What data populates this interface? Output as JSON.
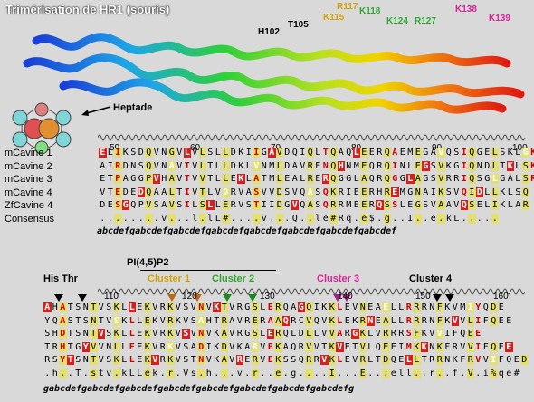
{
  "title": "Trimérisation de HR1 (souris)",
  "heptad_label": "Heptade",
  "heptad_letters": [
    "a",
    "b",
    "c",
    "d",
    "e",
    "f",
    "g"
  ],
  "residues": [
    {
      "label": "H102",
      "color": "#000000"
    },
    {
      "label": "T105",
      "color": "#000000"
    },
    {
      "label": "K115",
      "color": "#d4a400"
    },
    {
      "label": "R117",
      "color": "#d4a400"
    },
    {
      "label": "K118",
      "color": "#2eaa2e"
    },
    {
      "label": "K124",
      "color": "#2eaa2e"
    },
    {
      "label": "R127",
      "color": "#2eaa2e"
    },
    {
      "label": "K138",
      "color": "#e0209a"
    },
    {
      "label": "K139",
      "color": "#e0209a"
    }
  ],
  "block1": {
    "numbers": [
      "50",
      "60",
      "70",
      "80",
      "90",
      "100"
    ],
    "rows": [
      {
        "name": "mCavine 1",
        "seq": "ELIKSDQVNGVLVLSLLDKIIGAVDQIQLTQAQLEERQAEMEGAVQSIQGELSKLGK"
      },
      {
        "name": "mCavine 2",
        "seq": "AIRDNSQVNAVTVLTLLDKLVNMLDAVRENQHNMEQRQINLEGSVKGIQNDLTKLSK"
      },
      {
        "name": "mCavine 3",
        "seq": "ETPAGGPVHAVTVVTLLEKLATMLEALRERQGGLAQRQGGLAGSVRRIQSGLGALSR"
      },
      {
        "name": "mCavine 4",
        "seq": "VTEDEDQAALTIVTLVDRVASVVDSVQASQKRIEERHREMGNAIKSVQIDLLKLSQ"
      },
      {
        "name": "ZfCavine 4",
        "seq": "DESGQPVSAVSILSLLERVSTIIDGVQASQRRMEERQSSLEGSVAAVQSELIKLAR"
      },
      {
        "name": "Consensus",
        "seq": "........v...l.lL#....v...Q..le#Rq.e$.g..I..e.kL....."
      }
    ],
    "heptad": "abcdefgabcdefgabcdefgabcdefgabcdefgabcdefgabcdefgabcdef"
  },
  "block2": {
    "pi_label": "PI(4,5)P2",
    "clusters": [
      {
        "label": "His  Thr",
        "color": "#000000"
      },
      {
        "label": "Cluster 1",
        "color": "#d4a400"
      },
      {
        "label": "Cluster 2",
        "color": "#2eaa2e"
      },
      {
        "label": "Cluster 3",
        "color": "#e0209a"
      },
      {
        "label": "Cluster 4",
        "color": "#000000"
      }
    ],
    "numbers": [
      "110",
      "120",
      "130",
      "140",
      "150",
      "160"
    ],
    "rows": [
      {
        "seq": "AHATSNTVSKLLEKVRKVSVNVKTVRGSLERQAGQIKKLEVNEAELLRRRNFKVMIYQDE"
      },
      {
        "seq": "YQASTSNTVSKLLEKVRKVSAHTRAVRERAAQRCVQVKLEKRNEALLRRRNFKVVLIFQEE"
      },
      {
        "seq": "SHDTSNTVSKLLEKVRKVSVNVKAVRGSLERQLDLLVVARGKLVRRRSFKVVIFQEE"
      },
      {
        "seq": "TRHTGYVVNLLFEKVRKVSADIKDVKARVEKAQRVVTKVETVLQEEIMKKNKFRVVIFQEE"
      },
      {
        "seq": "RSYTSNTVSKLLEKVRKVSTNVKAVRERVEKSSQRRVKLEVRLTDQELLTRRNKFRVVIFQED"
      },
      {
        "seq": ".h..T.stv.kLLek.r.Vs.h...v.r..e.g....I...E...ell..r..f.V.i%qe#"
      }
    ],
    "heptad": "gabcdefgabcdefgabcdefgabcdefgabcdefgabcdefgabcdefgabcdefg"
  }
}
